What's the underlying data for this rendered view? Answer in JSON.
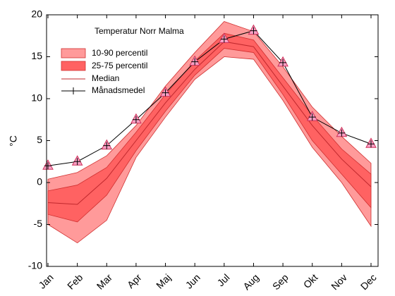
{
  "chart_data": {
    "type": "band-line",
    "legend_title": "Temperatur Norr Malma",
    "y_label": "°C",
    "categories": [
      "Jan",
      "Feb",
      "Mar",
      "Apr",
      "Maj",
      "Jun",
      "Jul",
      "Aug",
      "Sep",
      "Okt",
      "Nov",
      "Dec"
    ],
    "ylim": [
      -10,
      20
    ],
    "yticks": [
      -10,
      -5,
      0,
      5,
      10,
      15,
      20
    ],
    "series": [
      {
        "name": "10-90 percentil",
        "kind": "band",
        "color": "#ff9a9a",
        "lower": [
          -5.0,
          -7.2,
          -4.5,
          3.0,
          7.8,
          12.3,
          15.0,
          14.7,
          9.8,
          4.2,
          0.0,
          -5.2
        ],
        "upper": [
          0.4,
          1.2,
          3.2,
          6.8,
          11.5,
          15.5,
          19.2,
          18.0,
          13.8,
          9.0,
          5.5,
          2.3
        ]
      },
      {
        "name": "25-75 percentil",
        "kind": "band",
        "color": "#ff6262",
        "lower": [
          -3.8,
          -4.7,
          -1.5,
          3.8,
          8.5,
          12.8,
          16.0,
          15.5,
          10.5,
          5.0,
          1.0,
          -3.0
        ],
        "upper": [
          -1.0,
          -0.3,
          1.8,
          6.0,
          10.5,
          14.5,
          17.8,
          17.0,
          12.5,
          8.0,
          4.0,
          1.0
        ]
      },
      {
        "name": "Median",
        "kind": "line",
        "color": "#c0282d",
        "values": [
          -2.4,
          -2.6,
          0.5,
          5.0,
          9.5,
          13.5,
          16.8,
          16.2,
          11.5,
          6.8,
          2.8,
          -0.5
        ]
      },
      {
        "name": "Månadsmedel",
        "kind": "mean",
        "color": "#000000",
        "marker_color": "#f7a0c4",
        "values": [
          2.0,
          2.5,
          4.4,
          7.5,
          10.7,
          14.4,
          17.1,
          18.1,
          14.3,
          7.8,
          5.9,
          4.6
        ]
      }
    ]
  }
}
